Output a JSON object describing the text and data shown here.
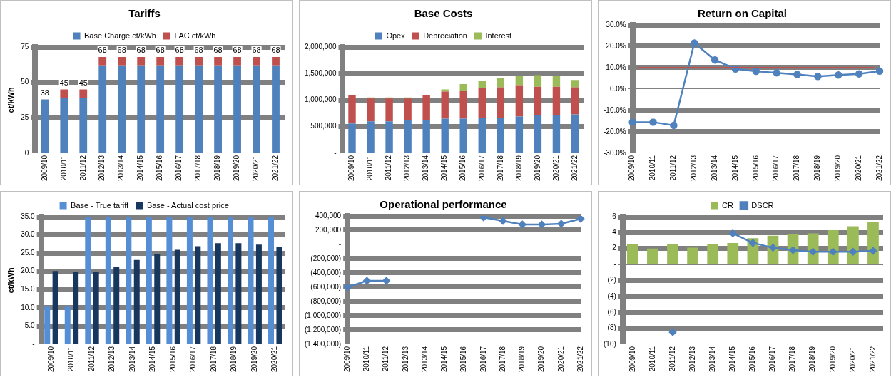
{
  "chart_data": [
    {
      "type": "bar",
      "title": "Tariffs",
      "ylabel": "ct/kWh",
      "stacked": true,
      "legend": "top",
      "grid": "y",
      "categories": [
        "2009/10",
        "2010/11",
        "2011/12",
        "2012/13",
        "2013/14",
        "2014/15",
        "2015/16",
        "2016/17",
        "2017/18",
        "2018/19",
        "2019/20",
        "2020/21",
        "2021/22"
      ],
      "series": [
        {
          "name": "Base Charge ct/kWh",
          "color": "#4f81bd",
          "values": [
            38,
            39,
            39,
            62,
            62,
            62,
            62,
            62,
            62,
            62,
            62,
            62,
            62
          ]
        },
        {
          "name": "FAC ct/kWh",
          "color": "#c0504d",
          "values": [
            0,
            6,
            6,
            6,
            6,
            6,
            6,
            6,
            6,
            6,
            6,
            6,
            6
          ]
        }
      ],
      "totals": [
        "38",
        "45",
        "45",
        "68",
        "68",
        "68",
        "68",
        "68",
        "68",
        "68",
        "68",
        "68",
        "68"
      ],
      "ylim": [
        0,
        75
      ],
      "yticks": [
        0,
        25,
        50,
        75
      ]
    },
    {
      "type": "bar",
      "title": "Base Costs",
      "stacked": true,
      "legend": "top",
      "grid": "y",
      "categories": [
        "2009/10",
        "2010/11",
        "2011/12",
        "2012/13",
        "2013/14",
        "2014/15",
        "2015/16",
        "2016/17",
        "2017/18",
        "2018/19",
        "2019/20",
        "2020/21",
        "2021/22"
      ],
      "series": [
        {
          "name": "Opex",
          "color": "#4f81bd",
          "values": [
            560000,
            600000,
            600000,
            620000,
            620000,
            650000,
            650000,
            670000,
            670000,
            690000,
            710000,
            710000,
            730000
          ]
        },
        {
          "name": "Depreciation",
          "color": "#c0504d",
          "values": [
            530000,
            430000,
            430000,
            410000,
            470000,
            510000,
            520000,
            550000,
            570000,
            590000,
            540000,
            540000,
            510000
          ]
        },
        {
          "name": "Interest",
          "color": "#9bbb59",
          "values": [
            0,
            20000,
            20000,
            20000,
            0,
            40000,
            130000,
            140000,
            170000,
            170000,
            220000,
            200000,
            140000
          ]
        }
      ],
      "ylim": [
        0,
        2000000
      ],
      "yticks": [
        {
          "value": 0,
          "label": "-"
        },
        {
          "value": 500000,
          "label": "500,000"
        },
        {
          "value": 1000000,
          "label": "1,000,000"
        },
        {
          "value": 1500000,
          "label": "1,500,000"
        },
        {
          "value": 2000000,
          "label": "2,000,000"
        }
      ]
    },
    {
      "type": "line",
      "title": "Return on Capital",
      "grid": "y",
      "marker": "circle",
      "categories": [
        "2009/10",
        "2010/11",
        "2011/12",
        "2012/13",
        "2013/14",
        "2014/15",
        "2015/16",
        "2016/17",
        "2017/18",
        "2018/19",
        "2019/20",
        "2020/21",
        "2021/22"
      ],
      "series": [
        {
          "color": "#4f81bd",
          "values": [
            -15.5,
            -15.5,
            -17,
            21.5,
            13.6,
            9.4,
            8.3,
            7.6,
            6.8,
            5.9,
            6.6,
            7.1,
            8.4
          ]
        }
      ],
      "ref_lines": [
        {
          "axis": "y",
          "value": 10,
          "color": "#c0504d"
        }
      ],
      "ylim": [
        -30,
        30
      ],
      "yticks": [
        {
          "value": -30,
          "label": "-30.0%"
        },
        {
          "value": -20,
          "label": "-20.0%"
        },
        {
          "value": -10,
          "label": "-10.0%"
        },
        {
          "value": 0,
          "label": "0.0%"
        },
        {
          "value": 10,
          "label": "10.0%"
        },
        {
          "value": 20,
          "label": "20.0%"
        },
        {
          "value": 30,
          "label": "30.0%"
        }
      ]
    },
    {
      "type": "bar",
      "ylabel": "ct/kWh",
      "legend": "top",
      "grid": "y",
      "categories": [
        "2009/10",
        "2010/11",
        "2011/12",
        "2012/13",
        "2013/14",
        "2014/15",
        "2015/16",
        "2016/17",
        "2017/18",
        "2018/19",
        "2019/20",
        "2020/21"
      ],
      "series": [
        {
          "name": "Base - True tariff",
          "color": "#558ed5",
          "values": [
            10.3,
            10.3,
            35,
            35,
            35,
            35,
            35,
            35,
            35,
            35,
            35,
            35
          ]
        },
        {
          "name": "Base - Actual cost price",
          "color": "#17375e",
          "values": [
            20.1,
            19.8,
            19.8,
            21.1,
            23.1,
            24.8,
            25.9,
            26.9,
            27.7,
            27.7,
            27.3,
            26.6
          ]
        }
      ],
      "ylim": [
        0,
        35
      ],
      "yticks": [
        {
          "value": 0,
          "label": "-"
        },
        {
          "value": 5,
          "label": "5.0"
        },
        {
          "value": 10,
          "label": "10.0"
        },
        {
          "value": 15,
          "label": "15.0"
        },
        {
          "value": 20,
          "label": "20.0"
        },
        {
          "value": 25,
          "label": "25.0"
        },
        {
          "value": 30,
          "label": "30.0"
        },
        {
          "value": 35,
          "label": "35.0"
        }
      ]
    },
    {
      "type": "line",
      "title": "Operational performance",
      "grid": "y",
      "marker": "diamond",
      "categories": [
        "2009/10",
        "2010/11",
        "2011/12",
        "2012/13",
        "2013/14",
        "2014/15",
        "2015/16",
        "2016/17",
        "2017/18",
        "2018/19",
        "2019/20",
        "2020/21",
        "2021/22"
      ],
      "series": [
        {
          "color": "#4f81bd",
          "values": [
            -600000,
            -510000,
            -510000,
            null,
            null,
            null,
            null,
            380000,
            330000,
            280000,
            280000,
            290000,
            360000
          ]
        }
      ],
      "ylim": [
        -1400000,
        400000
      ],
      "yticks": [
        {
          "value": -1400000,
          "label": "(1,400,000)"
        },
        {
          "value": -1200000,
          "label": "(1,200,000)"
        },
        {
          "value": -1000000,
          "label": "(1,000,000)"
        },
        {
          "value": -800000,
          "label": "(800,000)"
        },
        {
          "value": -600000,
          "label": "(600,000)"
        },
        {
          "value": -400000,
          "label": "(400,000)"
        },
        {
          "value": -200000,
          "label": "(200,000)"
        },
        {
          "value": 0,
          "label": "-"
        },
        {
          "value": 200000,
          "label": "200,000"
        },
        {
          "value": 400000,
          "label": "400,000"
        }
      ]
    },
    {
      "type": "bar",
      "legend": "top",
      "grid": "y",
      "marker": "diamond",
      "categories": [
        "2009/10",
        "2010/11",
        "2011/12",
        "2012/13",
        "2013/14",
        "2014/15",
        "2015/16",
        "2016/17",
        "2017/18",
        "2018/19",
        "2019/20",
        "2020/21",
        "2021/22"
      ],
      "series": [
        {
          "name": "CR",
          "color": "#9bbb59",
          "values": [
            2.6,
            2.0,
            2.5,
            2.1,
            2.5,
            2.7,
            3.3,
            3.6,
            3.8,
            3.9,
            4.3,
            4.8,
            5.3
          ]
        },
        {
          "name": "DSCR",
          "type": "line",
          "color": "#4f81bd",
          "values": [
            null,
            null,
            -8.5,
            null,
            null,
            3.9,
            2.7,
            2.1,
            1.8,
            1.6,
            1.6,
            1.6,
            1.7
          ]
        }
      ],
      "ylim": [
        -10,
        6
      ],
      "yticks": [
        {
          "value": -10,
          "label": "(10)"
        },
        {
          "value": -8,
          "label": "(8)"
        },
        {
          "value": -6,
          "label": "(6)"
        },
        {
          "value": -4,
          "label": "(4)"
        },
        {
          "value": -2,
          "label": "(2)"
        },
        {
          "value": 0,
          "label": "-"
        },
        {
          "value": 2,
          "label": "2"
        },
        {
          "value": 4,
          "label": "4"
        },
        {
          "value": 6,
          "label": "6"
        }
      ]
    }
  ]
}
